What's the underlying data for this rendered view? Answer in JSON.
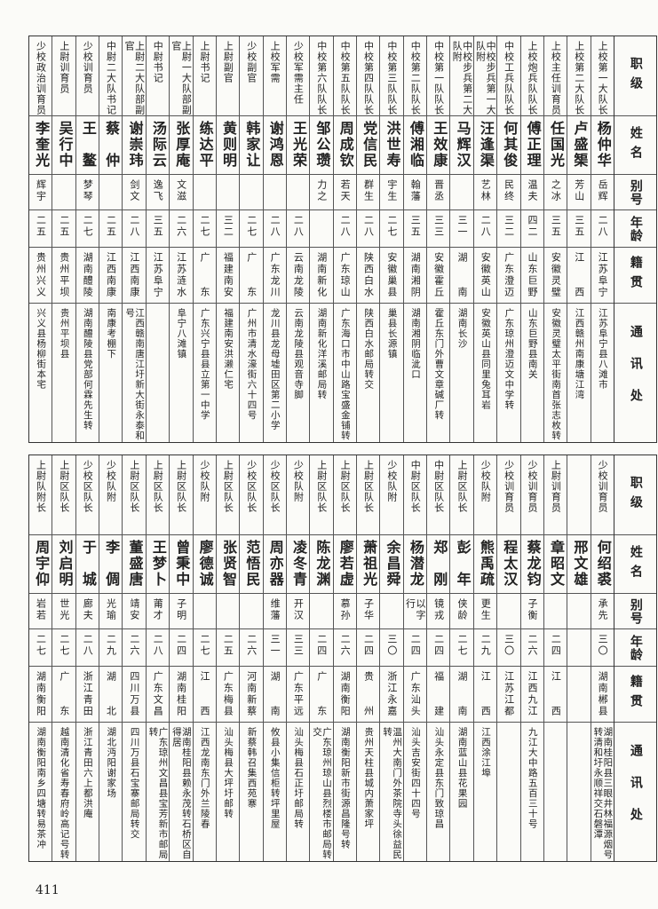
{
  "headers": [
    "职级",
    "姓名",
    "别号",
    "年龄",
    "籍贯",
    "通讯处"
  ],
  "top": [
    {
      "rank": "上校第一大队长",
      "name": "杨仲华",
      "alias": "岳辉",
      "age": "二八",
      "origin": "江苏阜宁",
      "addr": "江苏阜宁县八滩市"
    },
    {
      "rank": "上校第二大队长",
      "name": "卢盛榘",
      "alias": "芳山",
      "age": "三五",
      "origin": "江　　西",
      "addr": "江西赣州南康塘江湾"
    },
    {
      "rank": "上校主任训育员",
      "name": "任国光",
      "alias": "之冰",
      "age": "三五",
      "origin": "安徽灵璧",
      "addr": "安徽灵璧太平街南首张志枚转"
    },
    {
      "rank": "上校炮兵队队长",
      "name": "傅正理",
      "alias": "温夫",
      "age": "四二",
      "origin": "山东巨野",
      "addr": "山东巨野县南关"
    },
    {
      "rank": "中校工兵队队长",
      "name": "何其俊",
      "alias": "民终",
      "age": "三二",
      "origin": "广东澄迈",
      "addr": "广东琼州澄迈文中学转"
    },
    {
      "rank": "中校步兵第一大队附",
      "name": "汪逢渠",
      "alias": "艺林",
      "age": "二八",
      "origin": "安徽英山",
      "addr": "安徽英山县同里兔耳岩"
    },
    {
      "rank": "中校步兵第二大队附",
      "name": "马辉汉",
      "alias": "",
      "age": "三一",
      "origin": "湖　　南",
      "addr": "湖南长沙"
    },
    {
      "rank": "中校第一队队长",
      "name": "王效康",
      "alias": "晋丞",
      "age": "三三",
      "origin": "安徽霍丘",
      "addr": "霍丘东门外曹文章碱厂转"
    },
    {
      "rank": "中校第二队队长",
      "name": "傅湘临",
      "alias": "翰藩",
      "age": "三五",
      "origin": "湖南湘阴",
      "addr": "湖南湘阴临泚口"
    },
    {
      "rank": "中校第三队队长",
      "name": "洪世寿",
      "alias": "宇生",
      "age": "二七",
      "origin": "安徽巢县",
      "addr": "巢县长源镇"
    },
    {
      "rank": "中校第四队队长",
      "name": "党信民",
      "alias": "群生",
      "age": "二八",
      "origin": "陕西白水",
      "addr": "陕西白水邮局转交"
    },
    {
      "rank": "中校第五队队长",
      "name": "周成钦",
      "alias": "若天",
      "age": "二八",
      "origin": "广东琼山",
      "addr": "广东海口市中山路宝盛金铺转"
    },
    {
      "rank": "中校第六队队长",
      "name": "邹公瓒",
      "alias": "力之",
      "age": "",
      "origin": "湖南新化",
      "addr": "湖南新化洋溪邮局转"
    },
    {
      "rank": "少校军需主任",
      "name": "王光荣",
      "alias": "",
      "age": "二八",
      "origin": "云南龙陵",
      "addr": "云南龙陵县观音寺脚"
    },
    {
      "rank": "上校军需",
      "name": "谢鸿恩",
      "alias": "",
      "age": "二八",
      "origin": "广东龙川",
      "addr": "龙川县龙母墟田区第二小学"
    },
    {
      "rank": "少校副官",
      "name": "韩家让",
      "alias": "",
      "age": "二七",
      "origin": "广　　东",
      "addr": "广州市清水濠街六十四号"
    },
    {
      "rank": "上尉副官",
      "name": "黄则明",
      "alias": "",
      "age": "三二",
      "origin": "福建南安",
      "addr": "福建南安洪濑仁宅"
    },
    {
      "rank": "上尉书记",
      "name": "练达平",
      "alias": "",
      "age": "二七",
      "origin": "广　　东",
      "addr": "广东兴宁县县立第一中学"
    },
    {
      "rank": "上尉一大队部副官",
      "name": "张厚庵",
      "alias": "文滋",
      "age": "二六",
      "origin": "江苏涟水",
      "addr": "阜宁八滩镇"
    },
    {
      "rank": "中尉书记",
      "name": "汤际云",
      "alias": "逸飞",
      "age": "三五",
      "origin": "江苏阜宁",
      "addr": ""
    },
    {
      "rank": "上尉二大队部副官",
      "name": "谢崇玮",
      "alias": "剑文",
      "age": "二八",
      "origin": "江西南康",
      "addr": "江西赣南唐江圩新大街永泰和号"
    },
    {
      "rank": "中尉二大队书记",
      "name": "蔡　仲",
      "alias": "",
      "age": "二五",
      "origin": "江西南康",
      "addr": "南康考棚下"
    },
    {
      "rank": "少校训育员",
      "name": "王　鳌",
      "alias": "梦琴",
      "age": "二七",
      "origin": "湖南醴陵",
      "addr": "湖南醴陵县党部何霖先生转"
    },
    {
      "rank": "上尉训育员",
      "name": "吴行中",
      "alias": "",
      "age": "二五",
      "origin": "贵州平坝",
      "addr": "贵州平坝县"
    },
    {
      "rank": "少校政治训育员",
      "name": "李奎光",
      "alias": "辉宇",
      "age": "二五",
      "origin": "贵州兴义",
      "addr": "兴义县杨柳街本宅"
    }
  ],
  "bottom": [
    {
      "rank": "少校训育员",
      "name": "何绍裘",
      "alias": "承先",
      "age": "三〇",
      "origin": "湖南郴县",
      "addr": "湖南桂阳县三眼井林福源烟号转清和圩永顺祥交石磐潭"
    },
    {
      "rank": "",
      "name": "邢文雄",
      "alias": "",
      "age": "",
      "origin": "",
      "addr": ""
    },
    {
      "rank": "上尉训育员",
      "name": "章昭文",
      "alias": "",
      "age": "二四",
      "origin": "江　　西",
      "addr": ""
    },
    {
      "rank": "少校训育员",
      "name": "蔡龙钧",
      "alias": "子衡",
      "age": "二六",
      "origin": "江西九江",
      "addr": "九江大中路五百三十号"
    },
    {
      "rank": "少校训育员",
      "name": "程太汉",
      "alias": "",
      "age": "三〇",
      "origin": "江苏江都",
      "addr": ""
    },
    {
      "rank": "少校队附",
      "name": "熊禹疏",
      "alias": "更生",
      "age": "二九",
      "origin": "江　　西",
      "addr": "江西涂江埠"
    },
    {
      "rank": "上尉区队长",
      "name": "彭　年",
      "alias": "侠龄",
      "age": "二七",
      "origin": "湖　　南",
      "addr": "湖南蓝山县花果园"
    },
    {
      "rank": "中尉区队长",
      "name": "郑　刚",
      "alias": "镜戎",
      "age": "二四",
      "origin": "福　　建",
      "addr": "汕头永定县东门致琼昌"
    },
    {
      "rank": "中尉区队长",
      "name": "杨潜龙",
      "alias": "以字行",
      "age": "二四",
      "origin": "广东汕头",
      "addr": "汕头吉安街四十四号"
    },
    {
      "rank": "少校队附",
      "name": "余昌舜",
      "alias": "",
      "age": "三〇",
      "origin": "浙江永嘉",
      "addr": "温州大南门外茶院寺头徐益民转"
    },
    {
      "rank": "上尉区队长",
      "name": "萧祖光",
      "alias": "子华",
      "age": "二四",
      "origin": "贵　　州",
      "addr": "贵州天柱县城内萧家坪"
    },
    {
      "rank": "上尉区队长",
      "name": "廖若虚",
      "alias": "慕孙",
      "age": "二六",
      "origin": "湖南衡阳",
      "addr": "湖南衡阳新市街源昌隆号转"
    },
    {
      "rank": "上尉区队长",
      "name": "陈龙渊",
      "alias": "",
      "age": "二四",
      "origin": "广　　东",
      "addr": "广东琼州琼山县烈楼市邮局转交"
    },
    {
      "rank": "少校队附",
      "name": "凌冬青",
      "alias": "开汉",
      "age": "三三",
      "origin": "广东平远",
      "addr": "汕头梅县石正圩邮局转"
    },
    {
      "rank": "少校区队长",
      "name": "周亦器",
      "alias": "维藩",
      "age": "三一",
      "origin": "湖　　南",
      "addr": "攸县小集信柜转坪里屋"
    },
    {
      "rank": "少校区队长",
      "name": "范悟民",
      "alias": "",
      "age": "二六",
      "origin": "河南新蔡",
      "addr": "新蔡韩召集西苑寨"
    },
    {
      "rank": "上尉区队长",
      "name": "张贤智",
      "alias": "",
      "age": "二五",
      "origin": "广东梅县",
      "addr": "汕头梅县大坪圩邮转"
    },
    {
      "rank": "少校队附",
      "name": "廖德诚",
      "alias": "",
      "age": "二七",
      "origin": "江　　西",
      "addr": "江西龙南东门外兰陵春"
    },
    {
      "rank": "上尉区队长",
      "name": "曾秉中",
      "alias": "子明",
      "age": "二四",
      "origin": "湖南桂阳",
      "addr": "湖南桂阳县赖永茂转石桥区自得居"
    },
    {
      "rank": "上尉区队长",
      "name": "王梦卜",
      "alias": "莆才",
      "age": "二八",
      "origin": "广东文昌",
      "addr": "广东琼州文昌县宝芳新市邮局转"
    },
    {
      "rank": "上尉区队长",
      "name": "董盛唐",
      "alias": "靖安",
      "age": "二六",
      "origin": "四川万县",
      "addr": "四川万县石宝寨邮局转交"
    },
    {
      "rank": "少校队附",
      "name": "李　倜",
      "alias": "光瑜",
      "age": "二九",
      "origin": "湖　　北",
      "addr": "湖北沔阳谢家场"
    },
    {
      "rank": "少校区队长",
      "name": "于　城",
      "alias": "廊夫",
      "age": "二八",
      "origin": "浙江青田",
      "addr": "浙江青田六上都洪庵"
    },
    {
      "rank": "上尉区队长",
      "name": "刘启明",
      "alias": "世光",
      "age": "二七",
      "origin": "广　　东",
      "addr": "越南清化省寿春府岭高记号转"
    },
    {
      "rank": "上尉队附长",
      "name": "周宇仰",
      "alias": "岩若",
      "age": "二七",
      "origin": "湖南衡阳",
      "addr": "湖南衡阳南乡四塘转易茶冲"
    }
  ],
  "page_number": "411"
}
